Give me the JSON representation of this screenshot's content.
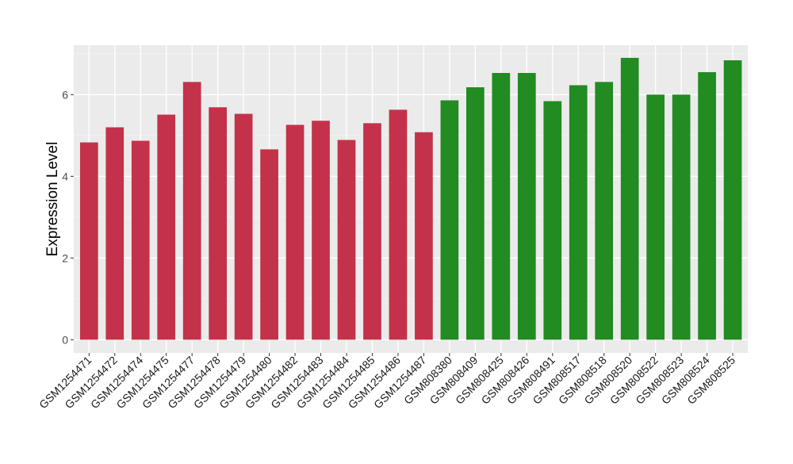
{
  "chart_data": {
    "type": "bar",
    "title": "",
    "xlabel": "",
    "ylabel": "Expression Level",
    "ylim": [
      0,
      7
    ],
    "yticks": [
      0,
      2,
      4,
      6
    ],
    "grid": true,
    "legend": "none",
    "categories": [
      "GSM1254471",
      "GSM1254472",
      "GSM1254474",
      "GSM1254475",
      "GSM1254477",
      "GSM1254478",
      "GSM1254479",
      "GSM1254480",
      "GSM1254482",
      "GSM1254483",
      "GSM1254484",
      "GSM1254485",
      "GSM1254486",
      "GSM1254487",
      "GSM808380",
      "GSM808409",
      "GSM808425",
      "GSM808426",
      "GSM808491",
      "GSM808517",
      "GSM808518",
      "GSM808520",
      "GSM808522",
      "GSM808523",
      "GSM808524",
      "GSM808525"
    ],
    "values": [
      4.83,
      5.2,
      4.87,
      5.51,
      6.31,
      5.69,
      5.53,
      4.66,
      5.26,
      5.36,
      4.89,
      5.3,
      5.63,
      5.08,
      5.86,
      6.18,
      6.53,
      6.53,
      5.84,
      6.23,
      6.31,
      6.9,
      6.0,
      6.0,
      6.55,
      6.84
    ],
    "groups": [
      0,
      0,
      0,
      0,
      0,
      0,
      0,
      0,
      0,
      0,
      0,
      0,
      0,
      0,
      1,
      1,
      1,
      1,
      1,
      1,
      1,
      1,
      1,
      1,
      1,
      1
    ],
    "colors": [
      "#C3324A",
      "#228B22"
    ],
    "panel_background": "#EBEBEB"
  }
}
